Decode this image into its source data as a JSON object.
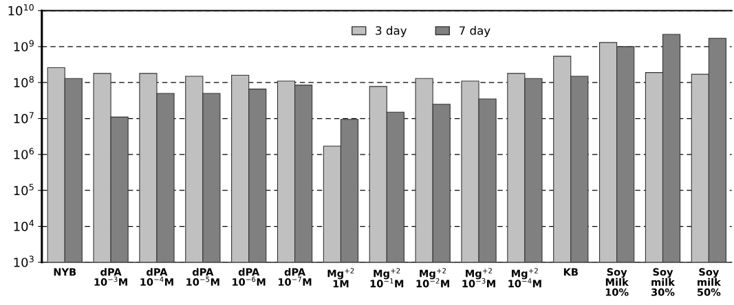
{
  "chart_data": {
    "type": "bar",
    "log": "y",
    "categories": [
      "NYB",
      "dPA\n10$^{−3}$M",
      "dPA\n10$^{−4}$M",
      "dPA\n10$^{−5}$M",
      "dPA\n10$^{−6}$M",
      "dPA\n10$^{−7}$M",
      "Mg$^{+2}$\n1M",
      "Mg$^{+2}$\n10$^{−1}$M",
      "Mg$^{+2}$\n10$^{−2}$M",
      "Mg$^{+2}$\n10$^{−3}$M",
      "Mg$^{+2}$\n10$^{−4}$M",
      "KB",
      "Soy\nMilk\n10%",
      "Soy\nmilk\n30%",
      "Soy\nmilk\n50%"
    ],
    "series": [
      {
        "name": "3 day",
        "color": "#c0c0c0",
        "values": [
          260000000.0,
          180000000.0,
          180000000.0,
          150000000.0,
          160000000.0,
          110000000.0,
          1700000.0,
          78000000.0,
          130000000.0,
          110000000.0,
          180000000.0,
          540000000.0,
          1300000000.0,
          190000000.0,
          170000000.0
        ]
      },
      {
        "name": "7 day",
        "color": "#808080",
        "values": [
          130000000.0,
          11000000.0,
          50000000.0,
          50000000.0,
          66000000.0,
          85000000.0,
          9500000.0,
          15000000.0,
          25000000.0,
          35000000.0,
          130000000.0,
          150000000.0,
          1000000000.0,
          2200000000.0,
          1700000000.0
        ]
      }
    ],
    "ylim": [
      1000,
      10000000000
    ],
    "yticks": [
      {
        "value": 1000,
        "label": "10$^{3}$"
      },
      {
        "value": 10000,
        "label": "10$^{4}$"
      },
      {
        "value": 100000,
        "label": "10$^{5}$"
      },
      {
        "value": 1000000,
        "label": "10$^{6}$"
      },
      {
        "value": 10000000,
        "label": "10$^{7}$"
      },
      {
        "value": 100000000,
        "label": "10$^{8}$"
      },
      {
        "value": 1000000000,
        "label": "10$^{9}$"
      },
      {
        "value": 10000000000,
        "label": "10$^{10}$"
      }
    ],
    "grid": "y",
    "legend": "top"
  }
}
